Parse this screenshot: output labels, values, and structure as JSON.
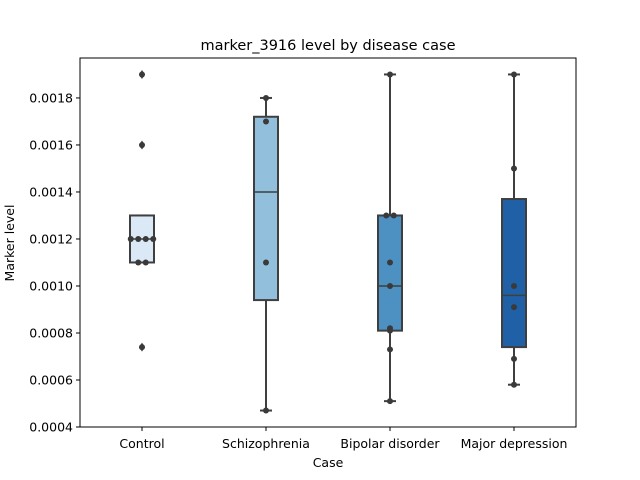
{
  "chart_data": {
    "type": "box",
    "title": "marker_3916 level by disease case",
    "xlabel": "Case",
    "ylabel": "Marker level",
    "ylim": [
      0.0004,
      0.00197
    ],
    "yticks": [
      "0.0004",
      "0.0006",
      "0.0008",
      "0.0010",
      "0.0012",
      "0.0014",
      "0.0016",
      "0.0018"
    ],
    "ytick_values": [
      0.0004,
      0.0006,
      0.0008,
      0.001,
      0.0012,
      0.0014,
      0.0016,
      0.0018
    ],
    "grid": false,
    "categories": [
      "Control",
      "Schizophrenia",
      "Bipolar disorder",
      "Major depression"
    ],
    "colors": [
      "#dbe9f6",
      "#92bfdb",
      "#4d91c2",
      "#2060a6"
    ],
    "edge_color": "#3f3f3f",
    "point_color": "#3a3a3a",
    "boxes": [
      {
        "category": "Control",
        "q1": 0.0011,
        "median": 0.0012,
        "q3": 0.0013,
        "whisker_low": 0.0011,
        "whisker_high": 0.0013,
        "outliers": [
          0.0019,
          0.0016,
          0.00074
        ],
        "points": [
          0.0019,
          0.0016,
          0.0012,
          0.0012,
          0.0012,
          0.0012,
          0.0011,
          0.0011,
          0.00074
        ]
      },
      {
        "category": "Schizophrenia",
        "q1": 0.00094,
        "median": 0.0014,
        "q3": 0.00172,
        "whisker_low": 0.00047,
        "whisker_high": 0.0018,
        "outliers": [],
        "points": [
          0.0018,
          0.0017,
          0.0011,
          0.00047
        ]
      },
      {
        "category": "Bipolar disorder",
        "q1": 0.00081,
        "median": 0.001,
        "q3": 0.0013,
        "whisker_low": 0.00051,
        "whisker_high": 0.0019,
        "outliers": [],
        "points": [
          0.0019,
          0.0013,
          0.0013,
          0.0011,
          0.001,
          0.00082,
          0.00081,
          0.00073,
          0.00051
        ]
      },
      {
        "category": "Major depression",
        "q1": 0.00074,
        "median": 0.00096,
        "q3": 0.00137,
        "whisker_low": 0.00058,
        "whisker_high": 0.0019,
        "outliers": [],
        "points": [
          0.0019,
          0.0015,
          0.001,
          0.00091,
          0.00069,
          0.00058
        ]
      }
    ]
  }
}
